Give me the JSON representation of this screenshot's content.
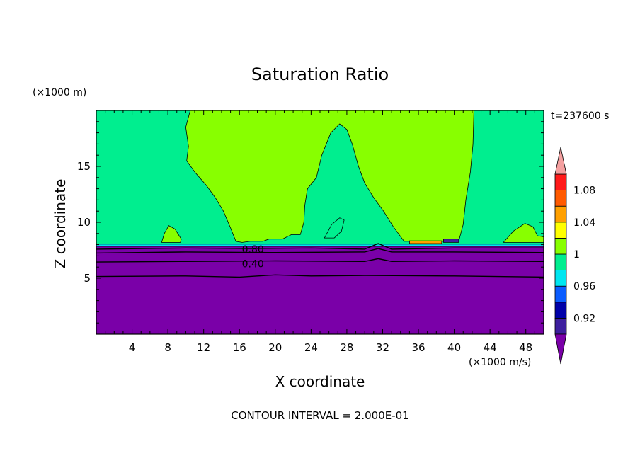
{
  "chart_data": {
    "type": "heatmap",
    "subtype": "filled-contour",
    "title": "Saturation Ratio",
    "xlabel": "X coordinate",
    "ylabel": "Z coordinate",
    "x_unit_label": "(×1000 m/s)",
    "y_unit_label": "(×1000 m)",
    "time_label": "t=237600 s",
    "footer": "CONTOUR INTERVAL = 2.000E-01",
    "xlim": [
      0,
      50
    ],
    "ylim": [
      0,
      20
    ],
    "x_ticks": [
      4,
      8,
      12,
      16,
      20,
      24,
      28,
      32,
      36,
      40,
      44,
      48
    ],
    "y_ticks": [
      5,
      10,
      15
    ],
    "contour_labels": [
      {
        "text": "0.80",
        "x": 17.5,
        "y": 7.6
      },
      {
        "text": "0.40",
        "x": 17.5,
        "y": 6.3
      }
    ],
    "colorbar": {
      "labels": [
        "1.08",
        "1.04",
        "1",
        "0.96",
        "0.92"
      ],
      "levels": [
        {
          "from": 0.9,
          "to": 0.92,
          "color": "#3d1f9e"
        },
        {
          "from": 0.92,
          "to": 0.94,
          "color": "#0000a8"
        },
        {
          "from": 0.94,
          "to": 0.96,
          "color": "#0a5cff"
        },
        {
          "from": 0.96,
          "to": 0.98,
          "color": "#00e6f0"
        },
        {
          "from": 0.98,
          "to": 1.0,
          "color": "#00ee8f"
        },
        {
          "from": 1.0,
          "to": 1.02,
          "color": "#88ff00"
        },
        {
          "from": 1.02,
          "to": 1.04,
          "color": "#ffff00"
        },
        {
          "from": 1.04,
          "to": 1.06,
          "color": "#ffa000"
        },
        {
          "from": 1.06,
          "to": 1.08,
          "color": "#ff5a00"
        },
        {
          "from": 1.08,
          "to": 1.1,
          "color": "#ff1a1a"
        }
      ],
      "low_extend_color": "#7a00a8",
      "high_extend_color": "#f4a0a0"
    },
    "regions": [
      {
        "level": "< 0.9",
        "color": "#7a00a8",
        "points": [
          [
            0,
            0
          ],
          [
            50,
            0
          ],
          [
            50,
            7.9
          ],
          [
            0,
            7.9
          ]
        ]
      },
      {
        "level": "0.98-1.0",
        "color": "#00ee8f",
        "points": [
          [
            0,
            8
          ],
          [
            50,
            8
          ],
          [
            50,
            20
          ],
          [
            0,
            20
          ]
        ]
      },
      {
        "level": "1.0-1.02",
        "color": "#88ff00",
        "points": [
          [
            10.5,
            20
          ],
          [
            10,
            18.5
          ],
          [
            10.3,
            16.8
          ],
          [
            10.1,
            15.5
          ],
          [
            11,
            14.5
          ],
          [
            12.3,
            13.3
          ],
          [
            13.3,
            12.2
          ],
          [
            14.2,
            11
          ],
          [
            15,
            9.5
          ],
          [
            15.6,
            8.3
          ],
          [
            16.3,
            8.2
          ],
          [
            17.2,
            8.3
          ],
          [
            18.6,
            8.3
          ],
          [
            19.3,
            8.5
          ],
          [
            20.8,
            8.5
          ],
          [
            21.8,
            8.9
          ],
          [
            22.8,
            8.9
          ],
          [
            23.2,
            10
          ],
          [
            23.3,
            11.5
          ],
          [
            23.6,
            13
          ],
          [
            24.6,
            14
          ],
          [
            25.2,
            16
          ],
          [
            26.2,
            18
          ],
          [
            27.2,
            18.8
          ],
          [
            28,
            18.3
          ],
          [
            28.6,
            17
          ],
          [
            29.3,
            15
          ],
          [
            30,
            13.5
          ],
          [
            31,
            12.2
          ],
          [
            32.1,
            11
          ],
          [
            33.2,
            9.6
          ],
          [
            34.4,
            8.3
          ],
          [
            40.5,
            8.3
          ],
          [
            41,
            9.8
          ],
          [
            41.3,
            12
          ],
          [
            41.8,
            14.5
          ],
          [
            42.1,
            17
          ],
          [
            42.2,
            20
          ]
        ]
      },
      {
        "level": "0.98-1.0",
        "color": "#00ee8f",
        "points": [
          [
            25.5,
            8.6
          ],
          [
            26.3,
            9.8
          ],
          [
            27.2,
            10.4
          ],
          [
            27.7,
            10.2
          ],
          [
            27.4,
            9.2
          ],
          [
            26.6,
            8.6
          ]
        ]
      },
      {
        "level": "1.0-1.02",
        "color": "#88ff00",
        "points": [
          [
            7.3,
            8.2
          ],
          [
            7.6,
            9
          ],
          [
            8.1,
            9.7
          ],
          [
            8.8,
            9.4
          ],
          [
            9.5,
            8.5
          ],
          [
            9.4,
            8.2
          ]
        ]
      },
      {
        "level": "1.0-1.02",
        "color": "#88ff00",
        "points": [
          [
            45.5,
            8.2
          ],
          [
            46.6,
            9.2
          ],
          [
            47.9,
            9.9
          ],
          [
            48.8,
            9.6
          ],
          [
            49.3,
            8.8
          ],
          [
            50,
            8.7
          ],
          [
            50,
            8.2
          ]
        ]
      },
      {
        "level": "0.96-0.98",
        "color": "#00e6f0",
        "points": [
          [
            0,
            7.85
          ],
          [
            50,
            7.85
          ],
          [
            50,
            8.05
          ],
          [
            0,
            8.05
          ]
        ]
      },
      {
        "level": "1.04-1.06",
        "color": "#ffa000",
        "points": [
          [
            35,
            8.1
          ],
          [
            38.6,
            8.1
          ],
          [
            38.6,
            8.35
          ],
          [
            35,
            8.35
          ]
        ]
      },
      {
        "level": "0.9-0.92",
        "color": "#3d1f9e",
        "points": [
          [
            38.8,
            8.2
          ],
          [
            40.5,
            8.2
          ],
          [
            40.5,
            8.5
          ],
          [
            38.8,
            8.5
          ]
        ]
      }
    ],
    "contour_lines": [
      {
        "level": 0.8,
        "points": [
          [
            0,
            7.6
          ],
          [
            10,
            7.7
          ],
          [
            17,
            7.65
          ],
          [
            24,
            7.7
          ],
          [
            30,
            7.6
          ],
          [
            31.5,
            8.1
          ],
          [
            33,
            7.6
          ],
          [
            40,
            7.7
          ],
          [
            50,
            7.7
          ]
        ]
      },
      {
        "level": 0.6,
        "points": [
          [
            0,
            7.25
          ],
          [
            10,
            7.35
          ],
          [
            20,
            7.3
          ],
          [
            30,
            7.35
          ],
          [
            31.5,
            7.65
          ],
          [
            33,
            7.35
          ],
          [
            40,
            7.35
          ],
          [
            50,
            7.3
          ]
        ]
      },
      {
        "level": 0.4,
        "points": [
          [
            0,
            6.45
          ],
          [
            10,
            6.5
          ],
          [
            20,
            6.55
          ],
          [
            30,
            6.5
          ],
          [
            31.5,
            6.75
          ],
          [
            33,
            6.5
          ],
          [
            40,
            6.55
          ],
          [
            50,
            6.5
          ]
        ]
      },
      {
        "level": 0.2,
        "points": [
          [
            0,
            5.15
          ],
          [
            10,
            5.2
          ],
          [
            16,
            5.1
          ],
          [
            20,
            5.3
          ],
          [
            24,
            5.2
          ],
          [
            30,
            5.25
          ],
          [
            40,
            5.2
          ],
          [
            50,
            5.1
          ]
        ]
      }
    ]
  }
}
